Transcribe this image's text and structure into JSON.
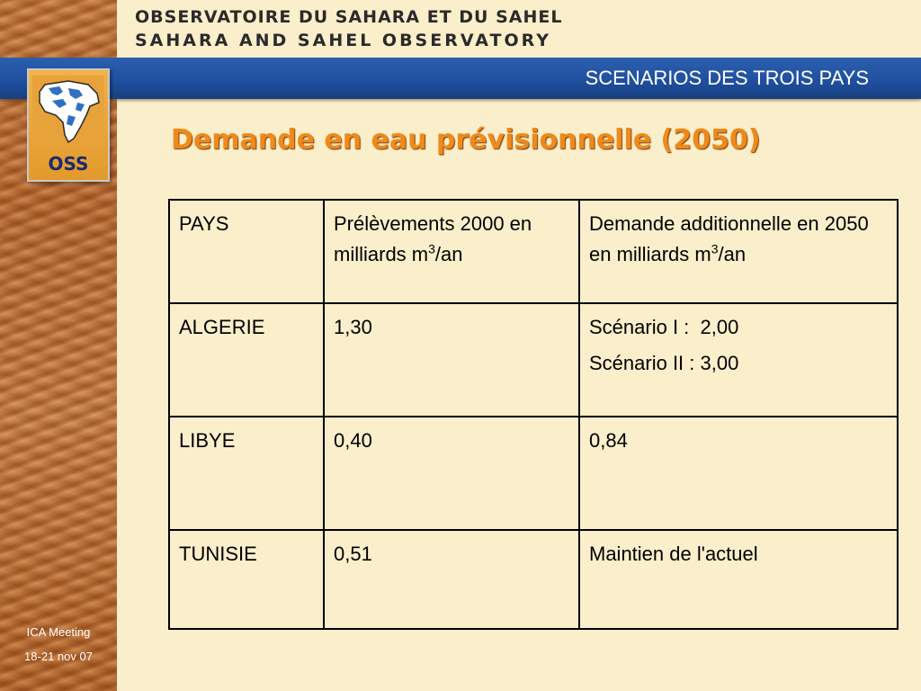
{
  "header": {
    "line1": "OBSERVATOIRE DU SAHARA ET DU SAHEL",
    "line2": "SAHARA AND SAHEL OBSERVATORY"
  },
  "band_title": "SCENARIOS DES TROIS PAYS",
  "logo": {
    "text": "OSS",
    "colors": {
      "orange": "#e39a2c",
      "navy": "#1b2a6e"
    }
  },
  "slide_title": "Demande en eau prévisionnelle (2050)",
  "table": {
    "headers": {
      "c1": "PAYS",
      "c2_pre": "Prélèvements 2000 en milliards m",
      "c2_sup": "3",
      "c2_post": "/an",
      "c3_pre": "Demande additionnelle en 2050 en milliards m",
      "c3_sup": "3",
      "c3_post": "/an"
    },
    "rows": [
      {
        "pays": "ALGERIE",
        "prelevements": "1,30",
        "demande": "Scénario I :  2,00",
        "demande2": "Scénario II : 3,00"
      },
      {
        "pays": "LIBYE",
        "prelevements": "0,40",
        "demande": "0,84"
      },
      {
        "pays": "TUNISIE",
        "prelevements": "0,51",
        "demande": "Maintien de l'actuel"
      }
    ]
  },
  "footer": {
    "line1": "ICA Meeting",
    "line2": "18-21 nov 07"
  },
  "colors": {
    "accent": "#ef8a1a",
    "band": "#1f4e9e",
    "background": "#fbeeca"
  }
}
